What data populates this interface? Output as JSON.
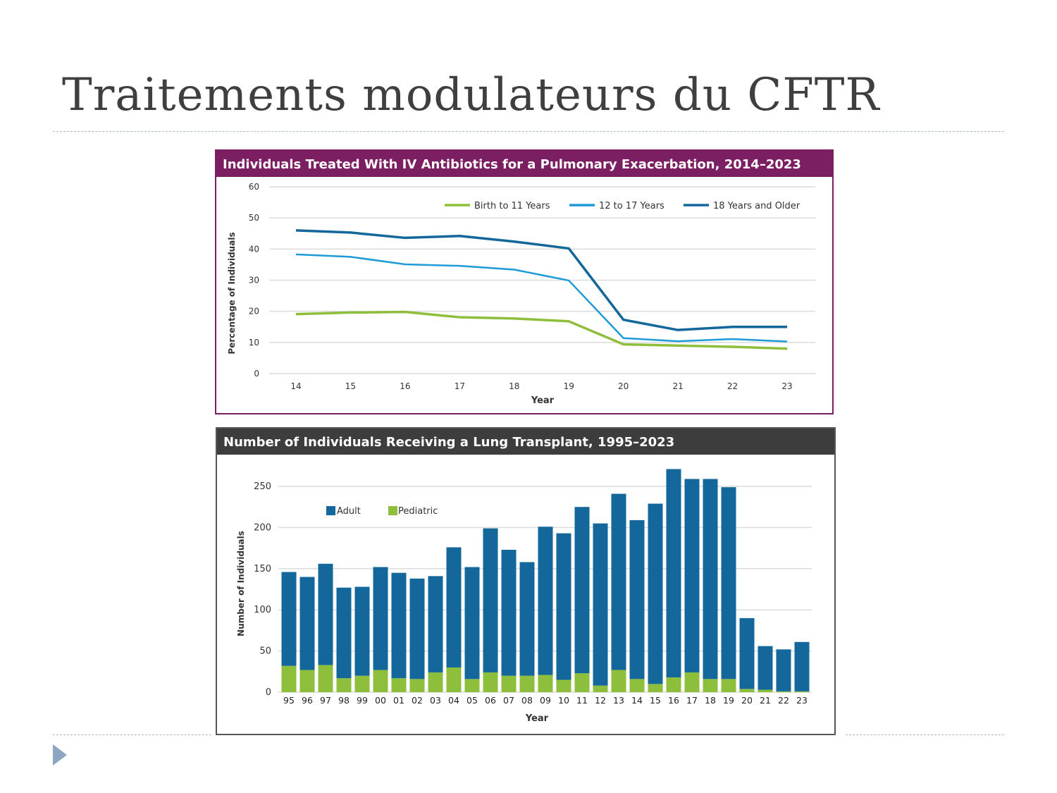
{
  "slide": {
    "title": "Traitements modulateurs du CFTR"
  },
  "colors": {
    "purple": "#7b1f62",
    "dark_header": "#3d3d3d",
    "green": "#8dbf3c",
    "light_blue": "#1e9ad8",
    "dark_blue": "#13679a",
    "adult": "#13679a",
    "pediatric": "#8dbf3c",
    "slide_accent": "#8ea6c2"
  },
  "icons": {
    "bullet": "triangle-right-icon"
  },
  "chart_data": [
    {
      "type": "line",
      "title": "Individuals Treated With IV Antibiotics for a Pulmonary Exacerbation, 2014–2023",
      "xlabel": "Year",
      "ylabel": "Percentage of Individuals",
      "ylim": [
        0,
        60
      ],
      "yticks": [
        "0",
        "10",
        "20",
        "30",
        "40",
        "50",
        "60"
      ],
      "categories": [
        "14",
        "15",
        "16",
        "17",
        "18",
        "19",
        "20",
        "21",
        "22",
        "23"
      ],
      "grid": true,
      "legend": "top-right",
      "series": [
        {
          "name": "Birth to 11 Years",
          "color": "#8dbf3c",
          "values": [
            19.1,
            19.6,
            19.8,
            18.1,
            17.7,
            16.8,
            9.4,
            9.0,
            8.6,
            8.0
          ]
        },
        {
          "name": "12 to 17 Years",
          "color": "#1e9ad8",
          "values": [
            38.3,
            37.5,
            35.1,
            34.6,
            33.4,
            29.9,
            11.4,
            10.4,
            11.1,
            10.3
          ]
        },
        {
          "name": "18 Years and Older",
          "color": "#13679a",
          "values": [
            46.0,
            45.3,
            43.6,
            44.2,
            42.4,
            40.2,
            17.3,
            14.0,
            15.0,
            15.0
          ]
        }
      ]
    },
    {
      "type": "bar",
      "stacked": true,
      "title": "Number of Individuals Receiving a Lung Transplant, 1995–2023",
      "xlabel": "Year",
      "ylabel": "Number of Individuals",
      "ylim": [
        0,
        270
      ],
      "yticks": [
        "0",
        "50",
        "100",
        "150",
        "200",
        "250"
      ],
      "categories": [
        "95",
        "96",
        "97",
        "98",
        "99",
        "00",
        "01",
        "02",
        "03",
        "04",
        "05",
        "06",
        "07",
        "08",
        "09",
        "10",
        "11",
        "12",
        "13",
        "14",
        "15",
        "16",
        "17",
        "18",
        "19",
        "20",
        "21",
        "22",
        "23"
      ],
      "grid": true,
      "legend": "top-left",
      "series": [
        {
          "name": "Pediatric",
          "color": "#8dbf3c",
          "values": [
            32,
            27,
            33,
            17,
            20,
            27,
            17,
            16,
            24,
            30,
            16,
            24,
            20,
            20,
            21,
            15,
            23,
            8,
            27,
            16,
            10,
            18,
            24,
            16,
            16,
            4,
            3,
            1,
            1
          ]
        },
        {
          "name": "Adult",
          "color": "#13679a",
          "values": [
            114,
            113,
            123,
            110,
            108,
            125,
            128,
            122,
            117,
            146,
            136,
            175,
            153,
            138,
            180,
            178,
            202,
            197,
            214,
            193,
            219,
            253,
            235,
            243,
            233,
            86,
            53,
            51,
            60
          ]
        }
      ]
    }
  ]
}
